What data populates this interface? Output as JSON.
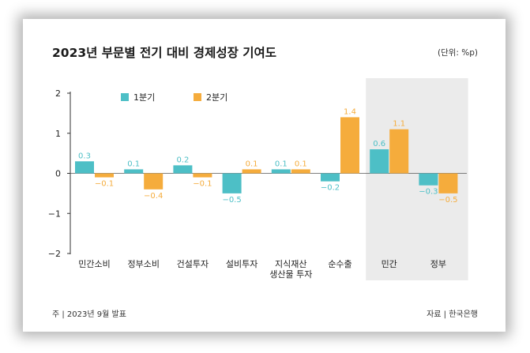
{
  "chart_data": {
    "type": "bar",
    "title": "2023년 부문별 전기 대비 경제성장 기여도",
    "unit": "(단위: %p)",
    "categories": [
      [
        "민간소비"
      ],
      [
        "정부소비"
      ],
      [
        "건설투자"
      ],
      [
        "설비투자"
      ],
      [
        "지식재산",
        "생산물 투자"
      ],
      [
        "순수출"
      ],
      [
        "민간"
      ],
      [
        "정부"
      ]
    ],
    "series": [
      {
        "name": "1분기",
        "color": "#4dbfc6",
        "values": [
          0.3,
          0.1,
          0.2,
          -0.5,
          0.1,
          -0.2,
          0.6,
          -0.3
        ],
        "labels": [
          "0.3",
          "0.1",
          "0.2",
          "−0.5",
          "0.1",
          "−0.2",
          "0.6",
          "−0.3"
        ]
      },
      {
        "name": "2분기",
        "color": "#f5ac3c",
        "values": [
          -0.1,
          -0.4,
          -0.1,
          0.1,
          0.1,
          1.4,
          1.1,
          -0.5
        ],
        "labels": [
          "−0.1",
          "−0.4",
          "−0.1",
          "0.1",
          "0.1",
          "1.4",
          "1.1",
          "−0.5"
        ]
      }
    ],
    "ylim": [
      -2,
      2
    ],
    "yticks": [
      2,
      1,
      0,
      -1,
      -2
    ],
    "ytick_labels": [
      "2",
      "1",
      "0",
      "−1",
      "−2"
    ],
    "highlighted_categories": [
      "민간",
      "정부"
    ],
    "highlight_color": "#ebebeb",
    "legend_position": "top-left",
    "footnote": "주 | 2023년 9월 발표",
    "source": "자료 | 한국은행"
  }
}
